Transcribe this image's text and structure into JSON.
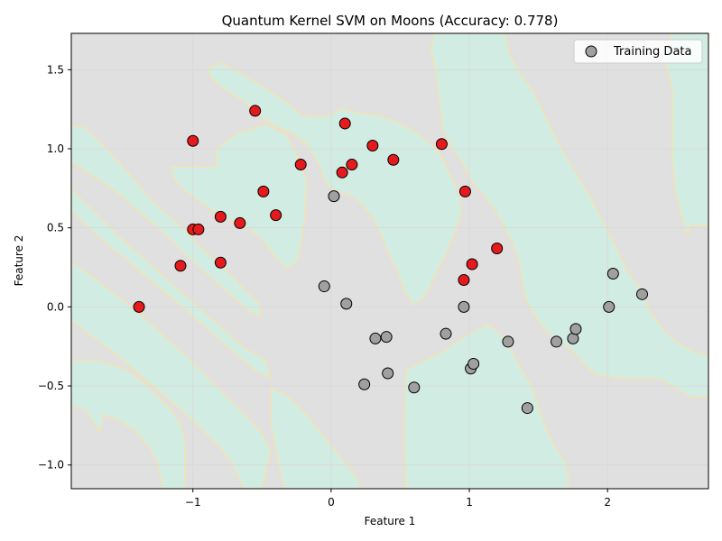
{
  "chart_data": {
    "type": "scatter",
    "title": "Quantum Kernel SVM on Moons (Accuracy: 0.778)",
    "xlabel": "Feature 1",
    "ylabel": "Feature 2",
    "xlim": [
      -1.88,
      2.73
    ],
    "ylim": [
      -1.15,
      1.73
    ],
    "xticks": [
      -1,
      0,
      1,
      2
    ],
    "xtick_labels": [
      "−1",
      "0",
      "1",
      "2"
    ],
    "yticks": [
      -1.0,
      -0.5,
      0.0,
      0.5,
      1.0,
      1.5
    ],
    "ytick_labels": [
      "−1.0",
      "−0.5",
      "0.0",
      "0.5",
      "1.0",
      "1.5"
    ],
    "grid": true,
    "legend": {
      "location": "upper right",
      "entries": [
        "Training Data"
      ]
    },
    "background": "decision regions (gray = class 0, mint = class 1)",
    "colors": {
      "class0_point": "#a0a0a0",
      "class1_point": "#e41a1c",
      "region_class0": "#e0e0e0",
      "region_class1": "#d1ece2",
      "boundary": "#f2e3b3",
      "grid": "#d8d8d8"
    },
    "series": [
      {
        "class": 0,
        "color": "#a0a0a0",
        "x": [
          0.02,
          -0.05,
          0.11,
          0.32,
          0.4,
          0.41,
          0.24,
          0.6,
          0.83,
          0.96,
          1.01,
          1.03,
          1.28,
          1.42,
          1.63,
          1.75,
          1.77,
          2.01,
          2.04,
          2.25
        ],
        "y": [
          0.7,
          0.13,
          0.02,
          -0.2,
          -0.19,
          -0.42,
          -0.49,
          -0.51,
          -0.17,
          0.0,
          -0.39,
          -0.36,
          -0.22,
          -0.64,
          -0.22,
          -0.2,
          -0.14,
          0.0,
          0.21,
          0.08
        ]
      },
      {
        "class": 1,
        "color": "#e41a1c",
        "x": [
          -1.39,
          -1.09,
          -1.0,
          -1.0,
          -0.96,
          -0.8,
          -0.8,
          -0.66,
          -0.55,
          -0.49,
          -0.4,
          -0.22,
          0.08,
          0.1,
          0.15,
          0.3,
          0.45,
          0.8,
          0.96,
          0.97,
          1.02,
          1.2
        ],
        "y": [
          0.0,
          0.26,
          1.05,
          0.49,
          0.49,
          0.57,
          0.28,
          0.53,
          1.24,
          0.73,
          0.58,
          0.9,
          0.85,
          1.16,
          0.9,
          1.02,
          0.93,
          1.03,
          0.17,
          0.73,
          0.27,
          0.37
        ]
      }
    ]
  }
}
